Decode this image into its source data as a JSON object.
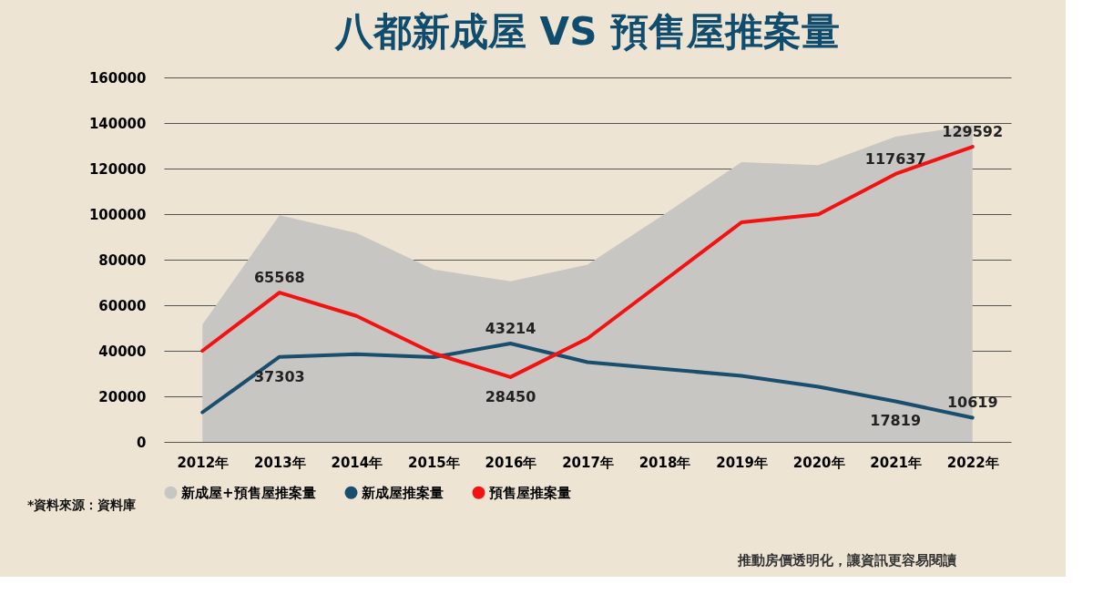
{
  "chart_data": {
    "type": "line",
    "title": "八都新成屋 VS 預售屋推案量",
    "categories": [
      "2012年",
      "2013年",
      "2014年",
      "2015年",
      "2016年",
      "2017年",
      "2018年",
      "2019年",
      "2020年",
      "2021年",
      "2022年"
    ],
    "series": [
      {
        "name": "新成屋+預售屋推案量",
        "type": "area",
        "color": "#c8c6c3",
        "values": [
          51500,
          99500,
          91700,
          75700,
          70500,
          77800,
          100000,
          122800,
          121500,
          134000,
          139000
        ]
      },
      {
        "name": "新成屋推案量",
        "color": "#1a4e6e",
        "values": [
          13000,
          37303,
          38500,
          37200,
          43214,
          35000,
          32000,
          29000,
          24200,
          17819,
          10619
        ],
        "value_labels": [
          null,
          "37303",
          null,
          null,
          "43214",
          null,
          null,
          null,
          null,
          "17819",
          "10619"
        ]
      },
      {
        "name": "預售屋推案量",
        "color": "#f21212",
        "values": [
          40000,
          65568,
          55300,
          38900,
          28450,
          45400,
          70900,
          96400,
          99900,
          117637,
          129592
        ],
        "value_labels": [
          null,
          "65568",
          null,
          null,
          "28450",
          null,
          null,
          null,
          null,
          "117637",
          "129592"
        ]
      }
    ],
    "ylim": [
      0,
      160000
    ],
    "yticks": [
      0,
      20000,
      40000,
      60000,
      80000,
      100000,
      120000,
      140000,
      160000
    ],
    "grid": "y",
    "legend": "bottom",
    "marker": "none",
    "line_style": "solid",
    "annotations": [
      "*資料來源：資料庫",
      "推動房價透明化，讓資訊更容易閱讀"
    ]
  }
}
